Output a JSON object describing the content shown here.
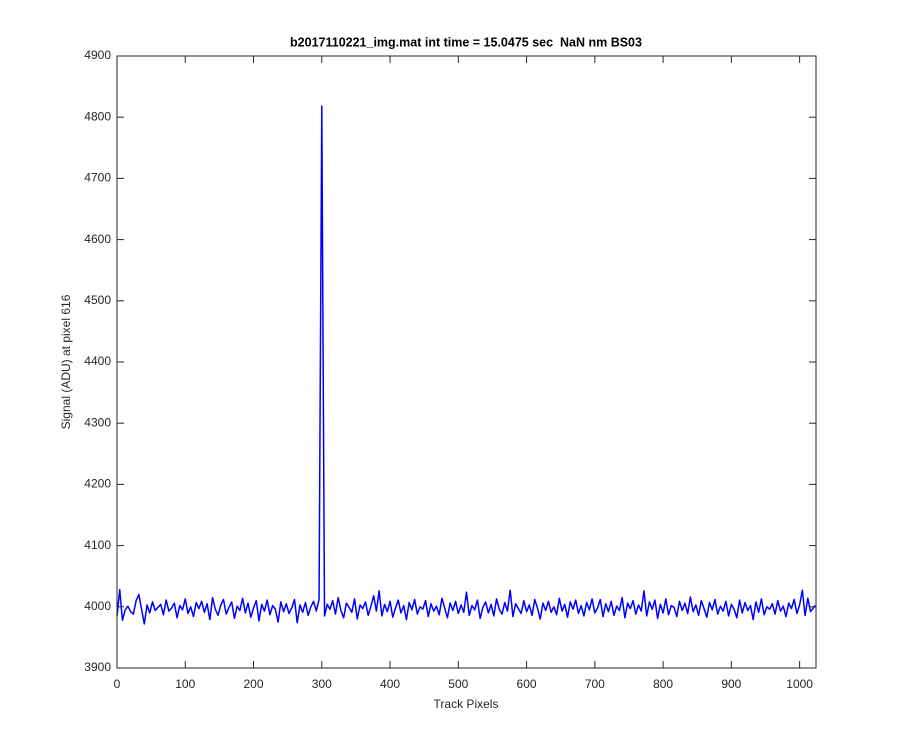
{
  "chart_data": {
    "type": "line",
    "title": "b2017110221_img.mat int time = 15.0475 sec  NaN nm BS03",
    "xlabel": "Track Pixels",
    "ylabel": "Signal (ADU) at pixel 616",
    "xlim": [
      0,
      1024
    ],
    "ylim": [
      3900,
      4900
    ],
    "xticks": [
      0,
      100,
      200,
      300,
      400,
      500,
      600,
      700,
      800,
      900,
      1000
    ],
    "yticks": [
      3900,
      4000,
      4100,
      4200,
      4300,
      4400,
      4500,
      4600,
      4700,
      4800,
      4900
    ],
    "x": [
      0,
      4,
      8,
      12,
      16,
      20,
      24,
      28,
      32,
      36,
      40,
      44,
      48,
      52,
      56,
      60,
      64,
      68,
      72,
      76,
      80,
      84,
      88,
      92,
      96,
      100,
      104,
      108,
      112,
      116,
      120,
      124,
      128,
      132,
      136,
      140,
      144,
      148,
      152,
      156,
      160,
      164,
      168,
      172,
      176,
      180,
      184,
      188,
      192,
      196,
      200,
      204,
      208,
      212,
      216,
      220,
      224,
      228,
      232,
      236,
      240,
      244,
      248,
      252,
      256,
      260,
      264,
      268,
      272,
      276,
      280,
      284,
      288,
      292,
      296,
      300,
      304,
      308,
      312,
      316,
      320,
      324,
      328,
      332,
      336,
      340,
      344,
      348,
      352,
      356,
      360,
      364,
      368,
      372,
      376,
      380,
      384,
      388,
      392,
      396,
      400,
      404,
      408,
      412,
      416,
      420,
      424,
      428,
      432,
      436,
      440,
      444,
      448,
      452,
      456,
      460,
      464,
      468,
      472,
      476,
      480,
      484,
      488,
      492,
      496,
      500,
      504,
      508,
      512,
      516,
      520,
      524,
      528,
      532,
      536,
      540,
      544,
      548,
      552,
      556,
      560,
      564,
      568,
      572,
      576,
      580,
      584,
      588,
      592,
      596,
      600,
      604,
      608,
      612,
      616,
      620,
      624,
      628,
      632,
      636,
      640,
      644,
      648,
      652,
      656,
      660,
      664,
      668,
      672,
      676,
      680,
      684,
      688,
      692,
      696,
      700,
      704,
      708,
      712,
      716,
      720,
      724,
      728,
      732,
      736,
      740,
      744,
      748,
      752,
      756,
      760,
      764,
      768,
      772,
      776,
      780,
      784,
      788,
      792,
      796,
      800,
      804,
      808,
      812,
      816,
      820,
      824,
      828,
      832,
      836,
      840,
      844,
      848,
      852,
      856,
      860,
      864,
      868,
      872,
      876,
      880,
      884,
      888,
      892,
      896,
      900,
      904,
      908,
      912,
      916,
      920,
      924,
      928,
      932,
      936,
      940,
      944,
      948,
      952,
      956,
      960,
      964,
      968,
      972,
      976,
      980,
      984,
      988,
      992,
      996,
      1000,
      1004,
      1008,
      1012,
      1016,
      1020,
      1023
    ],
    "series": [
      {
        "color": "#0000ff",
        "values": [
          3985,
          4028,
          3978,
          3995,
          4001,
          3992,
          3988,
          4010,
          4020,
          3996,
          3972,
          4003,
          3990,
          4008,
          3994,
          3999,
          4004,
          3987,
          4011,
          3993,
          3998,
          4006,
          3982,
          4002,
          3995,
          4013,
          3989,
          4000,
          3984,
          4007,
          3997,
          4009,
          3991,
          4005,
          3979,
          4015,
          3996,
          3986,
          4003,
          4012,
          3988,
          3999,
          4008,
          3981,
          4001,
          3994,
          4014,
          3990,
          4006,
          3983,
          3998,
          4010,
          3977,
          4004,
          3993,
          4011,
          3987,
          4002,
          3996,
          3975,
          4008,
          3992,
          4005,
          3989,
          3998,
          4012,
          3974,
          4003,
          3991,
          4007,
          3986,
          4000,
          4009,
          3993,
          4012,
          4818,
          3985,
          4004,
          3996,
          4010,
          3988,
          4015,
          3994,
          3982,
          4006,
          3999,
          3991,
          4013,
          3980,
          4003,
          3997,
          4008,
          3986,
          4001,
          4018,
          3993,
          4026,
          3985,
          4004,
          3992,
          4009,
          3983,
          3998,
          4011,
          3990,
          4002,
          3979,
          4007,
          3995,
          4012,
          3988,
          4000,
          3996,
          4010,
          3984,
          4005,
          3993,
          4001,
          3987,
          4014,
          3998,
          3982,
          4006,
          3994,
          4009,
          3989,
          4003,
          3991,
          4024,
          3986,
          4002,
          3995,
          4011,
          3981,
          3999,
          4008,
          3990,
          4004,
          3985,
          4013,
          3996,
          3988,
          4007,
          3993,
          4027,
          3984,
          4005,
          3997,
          3989,
          4010,
          3992,
          4003,
          3986,
          4012,
          3998,
          3980,
          4006,
          3994,
          4009,
          3991,
          4000,
          3987,
          4014,
          3993,
          4004,
          3983,
          4008,
          3996,
          4011,
          3989,
          4002,
          3985,
          4007,
          3995,
          4013,
          3990,
          3998,
          4012,
          3984,
          4005,
          3992,
          4009,
          3986,
          4001,
          3994,
          4015,
          3982,
          4006,
          3997,
          4010,
          3988,
          4003,
          3993,
          4026,
          3985,
          4008,
          3996,
          4011,
          3981,
          4004,
          3990,
          4013,
          3987,
          4002,
          3999,
          3984,
          4009,
          3994,
          4006,
          3989,
          4016,
          3992,
          4003,
          3986,
          4010,
          3997,
          3983,
          4007,
          3995,
          4012,
          3988,
          4001,
          3993,
          4009,
          3985,
          4004,
          3996,
          3982,
          4011,
          3990,
          4007,
          3994,
          4002,
          3979,
          4008,
          3991,
          4013,
          3987,
          4000,
          3996,
          4005,
          3988,
          4010,
          3993,
          4001,
          3984,
          4006,
          3997,
          4012,
          3989,
          4003,
          4027,
          3986,
          4014,
          3992,
          3998,
          4002
        ]
      }
    ]
  }
}
